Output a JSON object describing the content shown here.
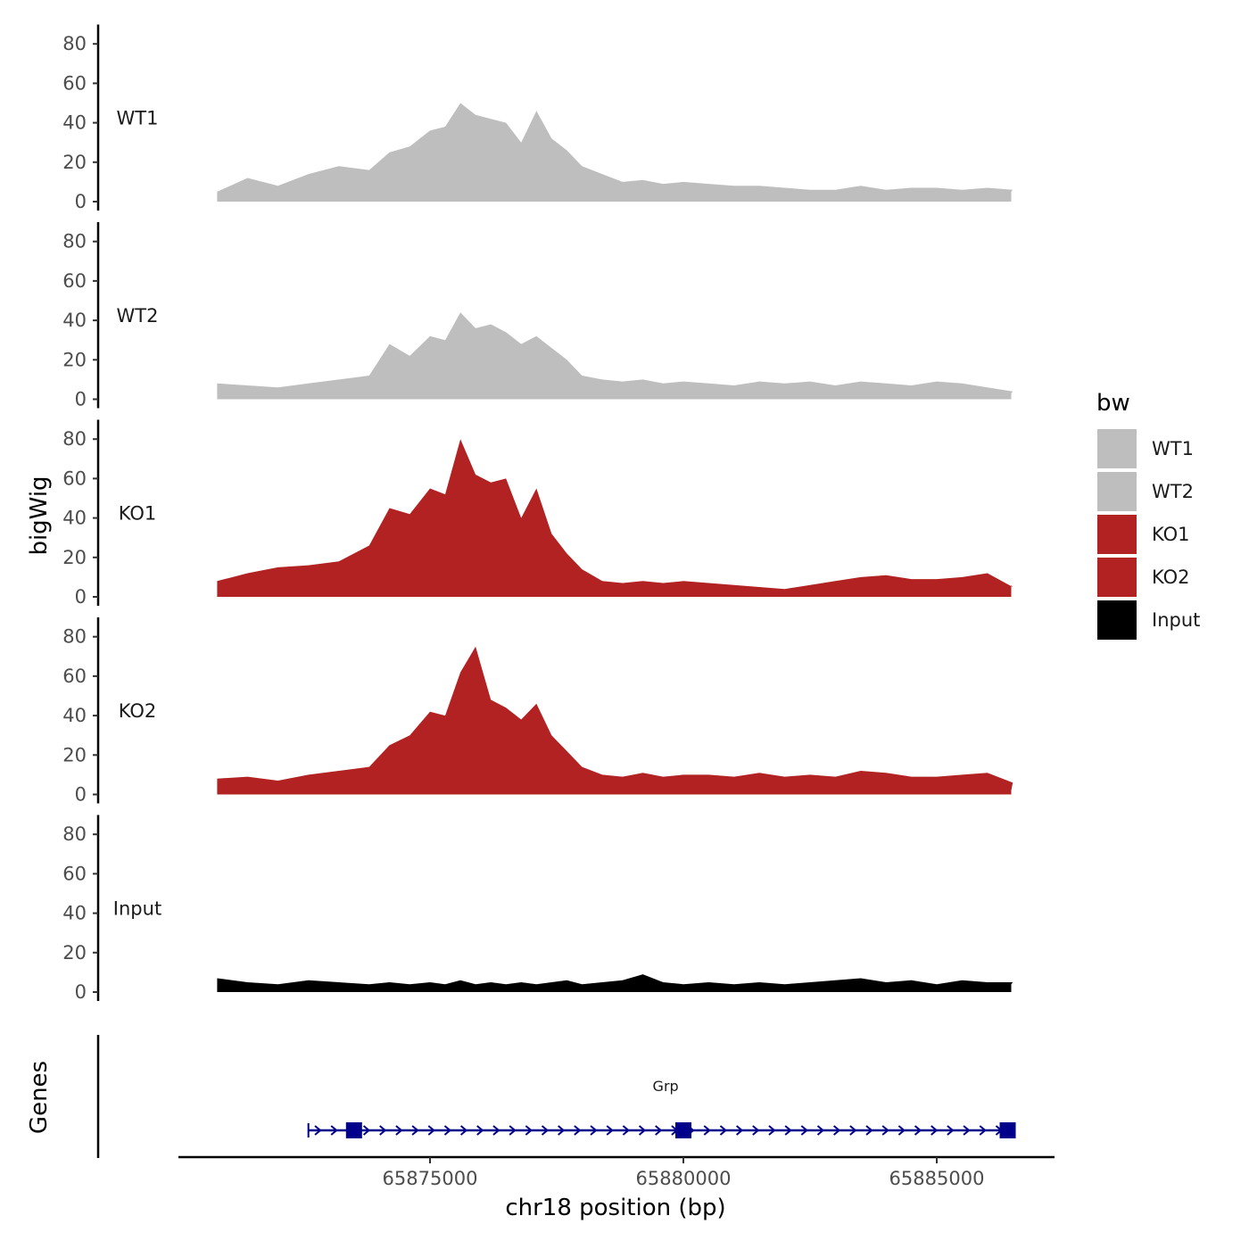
{
  "chart_data": {
    "type": "area",
    "ylabel": "bigWig",
    "xlabel": "chr18 position (bp)",
    "genes_label": "Genes",
    "ylim": [
      0,
      88
    ],
    "y_ticks": [
      0,
      20,
      40,
      60,
      80
    ],
    "xlim": [
      65870000,
      65887400
    ],
    "x_ticks": [
      65875000,
      65880000,
      65885000
    ],
    "x_tick_labels": [
      "65875000",
      "65880000",
      "65885000"
    ],
    "legend": {
      "title": "bw",
      "entries": [
        {
          "label": "WT1",
          "color": "#bebebe"
        },
        {
          "label": "WT2",
          "color": "#bebebe"
        },
        {
          "label": "KO1",
          "color": "#b22222"
        },
        {
          "label": "KO2",
          "color": "#b22222"
        },
        {
          "label": "Input",
          "color": "#000000"
        }
      ]
    },
    "x": [
      65870800,
      65871400,
      65872000,
      65872600,
      65873200,
      65873800,
      65874200,
      65874600,
      65875000,
      65875300,
      65875600,
      65875900,
      65876200,
      65876500,
      65876800,
      65877100,
      65877400,
      65877700,
      65878000,
      65878400,
      65878800,
      65879200,
      65879600,
      65880000,
      65880500,
      65881000,
      65881500,
      65882000,
      65882500,
      65883000,
      65883500,
      65884000,
      65884500,
      65885000,
      65885500,
      65886000,
      65886500,
      65886470
    ],
    "series": [
      {
        "name": "WT1",
        "color": "#bebebe",
        "values": [
          5,
          12,
          8,
          14,
          18,
          16,
          25,
          28,
          36,
          38,
          50,
          44,
          42,
          40,
          30,
          46,
          32,
          26,
          18,
          14,
          10,
          11,
          9,
          10,
          9,
          8,
          8,
          7,
          6,
          6,
          8,
          6,
          7,
          7,
          6,
          7,
          6,
          5
        ]
      },
      {
        "name": "WT2",
        "color": "#bebebe",
        "values": [
          8,
          7,
          6,
          8,
          10,
          12,
          28,
          22,
          32,
          30,
          44,
          36,
          38,
          34,
          28,
          32,
          26,
          20,
          12,
          10,
          9,
          10,
          8,
          9,
          8,
          7,
          9,
          8,
          9,
          7,
          9,
          8,
          7,
          9,
          8,
          6,
          4,
          3
        ]
      },
      {
        "name": "KO1",
        "color": "#b22222",
        "values": [
          8,
          12,
          15,
          16,
          18,
          26,
          45,
          42,
          55,
          52,
          80,
          62,
          58,
          60,
          40,
          55,
          32,
          22,
          14,
          8,
          7,
          8,
          7,
          8,
          7,
          6,
          5,
          4,
          6,
          8,
          10,
          11,
          9,
          9,
          10,
          12,
          5,
          6
        ]
      },
      {
        "name": "KO2",
        "color": "#b22222",
        "values": [
          8,
          9,
          7,
          10,
          12,
          14,
          25,
          30,
          42,
          40,
          62,
          75,
          48,
          44,
          38,
          46,
          30,
          22,
          14,
          10,
          9,
          11,
          9,
          10,
          10,
          9,
          11,
          9,
          10,
          9,
          12,
          11,
          9,
          9,
          10,
          11,
          6,
          2
        ]
      },
      {
        "name": "Input",
        "color": "#000000",
        "values": [
          7,
          5,
          4,
          6,
          5,
          4,
          5,
          4,
          5,
          4,
          6,
          4,
          5,
          4,
          5,
          4,
          5,
          6,
          4,
          5,
          6,
          9,
          5,
          4,
          5,
          4,
          5,
          4,
          5,
          6,
          7,
          5,
          6,
          4,
          6,
          5,
          5,
          4
        ]
      }
    ],
    "gene": {
      "name": "Grp",
      "start": 65872600,
      "end": 65886500,
      "exons": [
        65873500,
        65880000,
        65886400
      ],
      "color": "#00008b"
    }
  }
}
